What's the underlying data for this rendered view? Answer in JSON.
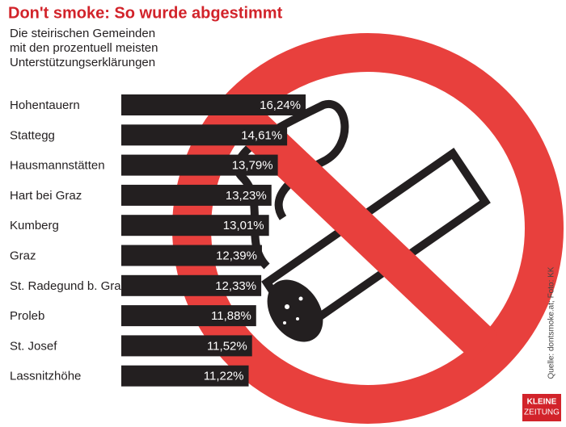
{
  "chart_data": {
    "type": "bar",
    "orientation": "horizontal",
    "title": "Don't smoke: So wurde abgestimmt",
    "subtitle": [
      "Die steirischen Gemeinden",
      "mit den prozentuell meisten",
      "Unterstützungserklärungen"
    ],
    "categories": [
      "Hohentauern",
      "Stattegg",
      "Hausmannstätten",
      "Hart bei Graz",
      "Kumberg",
      "Graz",
      "St. Radegund b. Graz",
      "Proleb",
      "St. Josef",
      "Lassnitzhöhe"
    ],
    "values": [
      16.24,
      14.61,
      13.79,
      13.23,
      13.01,
      12.39,
      12.33,
      11.88,
      11.52,
      11.22
    ],
    "value_labels": [
      "16,24%",
      "14,61%",
      "13,79%",
      "13,23%",
      "13,01%",
      "12,39%",
      "12,33%",
      "11,88%",
      "11,52%",
      "11,22%"
    ],
    "color": "#231f20",
    "source": "Quelle: dontsmoke.at; Foto: KK",
    "logo": [
      "KLEINE",
      "ZEITUNG"
    ]
  }
}
